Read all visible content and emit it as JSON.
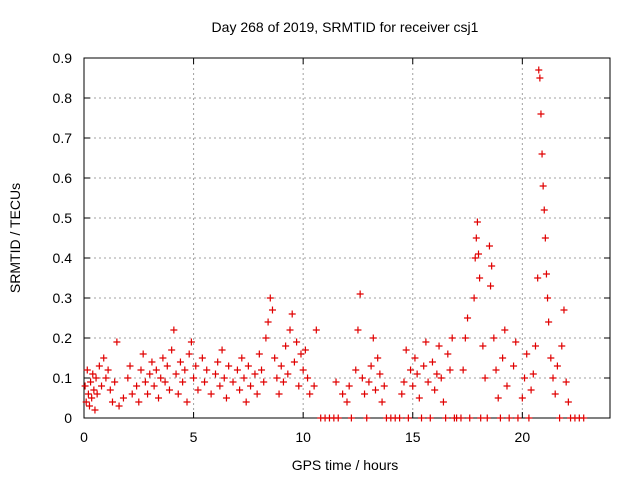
{
  "chart_data": {
    "type": "scatter",
    "title": "Day 268 of 2019, SRMTID for receiver csj1",
    "xlabel": "GPS time / hours",
    "ylabel": "SRMTID / TECUs",
    "xlim": [
      0,
      24
    ],
    "ylim": [
      0,
      0.9
    ],
    "xticks": [
      0,
      5,
      10,
      15,
      20
    ],
    "xtick_labels": [
      "0",
      "5",
      "10",
      "15",
      "20"
    ],
    "yticks": [
      0,
      0.1,
      0.2,
      0.3,
      0.4,
      0.5,
      0.6,
      0.7,
      0.8,
      0.9
    ],
    "ytick_labels": [
      "0",
      "0.1",
      "0.2",
      "0.3",
      "0.4",
      "0.5",
      "0.6",
      "0.7",
      "0.8",
      "0.9"
    ],
    "grid": true,
    "marker": "+",
    "color": "#e00000",
    "series": [
      {
        "name": "SRMTID",
        "points": [
          [
            0.05,
            0.08
          ],
          [
            0.1,
            0.04
          ],
          [
            0.15,
            0.12
          ],
          [
            0.2,
            0.06
          ],
          [
            0.25,
            0.03
          ],
          [
            0.3,
            0.09
          ],
          [
            0.35,
            0.05
          ],
          [
            0.4,
            0.11
          ],
          [
            0.45,
            0.07
          ],
          [
            0.5,
            0.02
          ],
          [
            0.55,
            0.1
          ],
          [
            0.6,
            0.06
          ],
          [
            0.7,
            0.13
          ],
          [
            0.8,
            0.08
          ],
          [
            0.9,
            0.15
          ],
          [
            1.0,
            0.1
          ],
          [
            1.1,
            0.12
          ],
          [
            1.2,
            0.07
          ],
          [
            1.3,
            0.04
          ],
          [
            1.4,
            0.09
          ],
          [
            1.5,
            0.19
          ],
          [
            1.6,
            0.03
          ],
          [
            1.8,
            0.05
          ],
          [
            2.0,
            0.1
          ],
          [
            2.1,
            0.13
          ],
          [
            2.2,
            0.06
          ],
          [
            2.4,
            0.08
          ],
          [
            2.5,
            0.04
          ],
          [
            2.6,
            0.12
          ],
          [
            2.7,
            0.16
          ],
          [
            2.8,
            0.09
          ],
          [
            2.9,
            0.06
          ],
          [
            3.0,
            0.11
          ],
          [
            3.1,
            0.14
          ],
          [
            3.2,
            0.08
          ],
          [
            3.3,
            0.12
          ],
          [
            3.4,
            0.05
          ],
          [
            3.5,
            0.1
          ],
          [
            3.6,
            0.15
          ],
          [
            3.7,
            0.09
          ],
          [
            3.8,
            0.13
          ],
          [
            3.9,
            0.07
          ],
          [
            4.0,
            0.17
          ],
          [
            4.1,
            0.22
          ],
          [
            4.2,
            0.11
          ],
          [
            4.3,
            0.06
          ],
          [
            4.4,
            0.14
          ],
          [
            4.5,
            0.09
          ],
          [
            4.6,
            0.12
          ],
          [
            4.7,
            0.04
          ],
          [
            4.8,
            0.16
          ],
          [
            4.9,
            0.19
          ],
          [
            5.0,
            0.1
          ],
          [
            5.1,
            0.13
          ],
          [
            5.2,
            0.07
          ],
          [
            5.4,
            0.15
          ],
          [
            5.5,
            0.09
          ],
          [
            5.6,
            0.12
          ],
          [
            5.8,
            0.06
          ],
          [
            6.0,
            0.11
          ],
          [
            6.1,
            0.14
          ],
          [
            6.2,
            0.08
          ],
          [
            6.3,
            0.17
          ],
          [
            6.4,
            0.1
          ],
          [
            6.5,
            0.05
          ],
          [
            6.6,
            0.13
          ],
          [
            6.8,
            0.09
          ],
          [
            7.0,
            0.12
          ],
          [
            7.1,
            0.07
          ],
          [
            7.2,
            0.15
          ],
          [
            7.3,
            0.1
          ],
          [
            7.4,
            0.04
          ],
          [
            7.5,
            0.13
          ],
          [
            7.6,
            0.08
          ],
          [
            7.8,
            0.11
          ],
          [
            7.9,
            0.06
          ],
          [
            8.0,
            0.16
          ],
          [
            8.1,
            0.12
          ],
          [
            8.2,
            0.09
          ],
          [
            8.3,
            0.2
          ],
          [
            8.4,
            0.24
          ],
          [
            8.5,
            0.3
          ],
          [
            8.6,
            0.27
          ],
          [
            8.7,
            0.15
          ],
          [
            8.8,
            0.1
          ],
          [
            8.9,
            0.06
          ],
          [
            9.0,
            0.13
          ],
          [
            9.1,
            0.09
          ],
          [
            9.2,
            0.18
          ],
          [
            9.3,
            0.11
          ],
          [
            9.4,
            0.22
          ],
          [
            9.5,
            0.26
          ],
          [
            9.6,
            0.14
          ],
          [
            9.7,
            0.19
          ],
          [
            9.8,
            0.08
          ],
          [
            9.9,
            0.16
          ],
          [
            10.0,
            0.12
          ],
          [
            10.1,
            0.17
          ],
          [
            10.2,
            0.1
          ],
          [
            10.3,
            0.06
          ],
          [
            10.5,
            0.08
          ],
          [
            10.6,
            0.22
          ],
          [
            10.8,
            0.0
          ],
          [
            11.0,
            0.0
          ],
          [
            11.2,
            0.0
          ],
          [
            11.4,
            0.0
          ],
          [
            11.6,
            0.0
          ],
          [
            11.5,
            0.09
          ],
          [
            11.8,
            0.06
          ],
          [
            12.0,
            0.04
          ],
          [
            12.1,
            0.08
          ],
          [
            12.2,
            0.0
          ],
          [
            12.4,
            0.12
          ],
          [
            12.5,
            0.22
          ],
          [
            12.6,
            0.31
          ],
          [
            12.7,
            0.1
          ],
          [
            12.8,
            0.06
          ],
          [
            12.9,
            0.0
          ],
          [
            13.0,
            0.09
          ],
          [
            13.1,
            0.13
          ],
          [
            13.2,
            0.2
          ],
          [
            13.3,
            0.07
          ],
          [
            13.4,
            0.15
          ],
          [
            13.5,
            0.11
          ],
          [
            13.6,
            0.04
          ],
          [
            13.7,
            0.08
          ],
          [
            13.8,
            0.0
          ],
          [
            14.0,
            0.0
          ],
          [
            14.2,
            0.0
          ],
          [
            14.4,
            0.0
          ],
          [
            14.5,
            0.06
          ],
          [
            14.6,
            0.09
          ],
          [
            14.7,
            0.17
          ],
          [
            14.8,
            0.0
          ],
          [
            14.9,
            0.12
          ],
          [
            15.0,
            0.08
          ],
          [
            15.1,
            0.15
          ],
          [
            15.2,
            0.11
          ],
          [
            15.3,
            0.05
          ],
          [
            15.4,
            0.0
          ],
          [
            15.5,
            0.13
          ],
          [
            15.6,
            0.19
          ],
          [
            15.7,
            0.09
          ],
          [
            15.8,
            0.0
          ],
          [
            15.9,
            0.14
          ],
          [
            16.0,
            0.07
          ],
          [
            16.1,
            0.11
          ],
          [
            16.2,
            0.18
          ],
          [
            16.3,
            0.1
          ],
          [
            16.4,
            0.04
          ],
          [
            16.5,
            0.0
          ],
          [
            16.6,
            0.16
          ],
          [
            16.7,
            0.12
          ],
          [
            16.8,
            0.2
          ],
          [
            16.9,
            0.0
          ],
          [
            17.0,
            0.0
          ],
          [
            17.2,
            0.0
          ],
          [
            17.3,
            0.12
          ],
          [
            17.4,
            0.2
          ],
          [
            17.5,
            0.25
          ],
          [
            17.6,
            0.0
          ],
          [
            17.8,
            0.3
          ],
          [
            17.85,
            0.4
          ],
          [
            17.9,
            0.45
          ],
          [
            17.95,
            0.49
          ],
          [
            18.0,
            0.41
          ],
          [
            18.05,
            0.35
          ],
          [
            18.1,
            0.0
          ],
          [
            18.2,
            0.18
          ],
          [
            18.3,
            0.1
          ],
          [
            18.4,
            0.0
          ],
          [
            18.5,
            0.43
          ],
          [
            18.55,
            0.33
          ],
          [
            18.6,
            0.38
          ],
          [
            18.7,
            0.2
          ],
          [
            18.8,
            0.12
          ],
          [
            18.9,
            0.05
          ],
          [
            19.0,
            0.0
          ],
          [
            19.1,
            0.15
          ],
          [
            19.2,
            0.22
          ],
          [
            19.3,
            0.08
          ],
          [
            19.4,
            0.0
          ],
          [
            19.6,
            0.13
          ],
          [
            19.7,
            0.19
          ],
          [
            19.8,
            0.0
          ],
          [
            20.0,
            0.05
          ],
          [
            20.1,
            0.1
          ],
          [
            20.2,
            0.16
          ],
          [
            20.3,
            0.0
          ],
          [
            20.4,
            0.07
          ],
          [
            20.5,
            0.11
          ],
          [
            20.6,
            0.18
          ],
          [
            20.7,
            0.35
          ],
          [
            20.75,
            0.87
          ],
          [
            20.8,
            0.85
          ],
          [
            20.85,
            0.76
          ],
          [
            20.9,
            0.66
          ],
          [
            20.95,
            0.58
          ],
          [
            21.0,
            0.52
          ],
          [
            21.05,
            0.45
          ],
          [
            21.1,
            0.36
          ],
          [
            21.15,
            0.3
          ],
          [
            21.2,
            0.24
          ],
          [
            21.3,
            0.15
          ],
          [
            21.4,
            0.1
          ],
          [
            21.5,
            0.06
          ],
          [
            21.6,
            0.13
          ],
          [
            21.7,
            0.0
          ],
          [
            21.8,
            0.18
          ],
          [
            21.9,
            0.27
          ],
          [
            22.0,
            0.09
          ],
          [
            22.1,
            0.04
          ],
          [
            22.2,
            0.0
          ],
          [
            22.4,
            0.0
          ],
          [
            22.6,
            0.0
          ],
          [
            22.8,
            0.0
          ]
        ]
      }
    ]
  }
}
